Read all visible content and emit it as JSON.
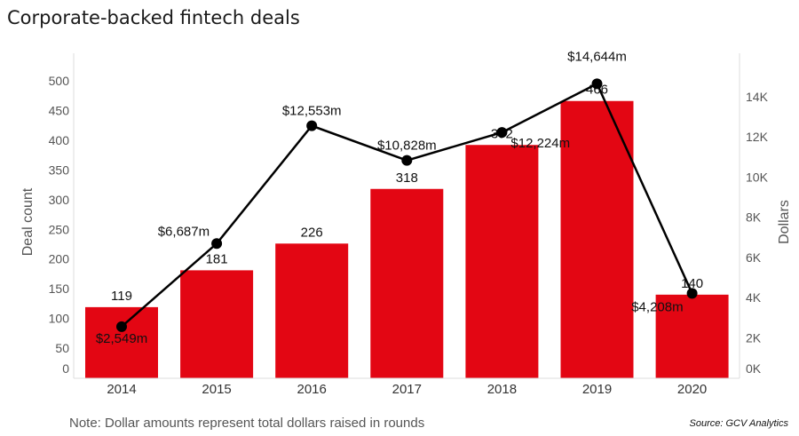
{
  "chart_data": {
    "type": "bar",
    "title": "Corporate-backed fintech deals",
    "categories": [
      "2014",
      "2015",
      "2016",
      "2017",
      "2018",
      "2019",
      "2020"
    ],
    "series": [
      {
        "name": "Deal count",
        "type": "bar",
        "axis": "left",
        "values": [
          119,
          181,
          226,
          318,
          392,
          466,
          140
        ],
        "labels": [
          "119",
          "181",
          "226",
          "318",
          "392",
          "466",
          "140"
        ],
        "color": "#e30613"
      },
      {
        "name": "Dollars",
        "type": "line",
        "axis": "right",
        "values": [
          2549,
          6687,
          12553,
          10828,
          12224,
          14644,
          4208
        ],
        "labels": [
          "$2,549m",
          "$6,687m",
          "$12,553m",
          "$10,828m",
          "$12,224m",
          "$14,644m",
          "$4,208m"
        ],
        "color": "#000000"
      }
    ],
    "ylabel": "Deal count",
    "ylim": [
      0,
      500
    ],
    "yticks": [
      0,
      50,
      100,
      150,
      200,
      250,
      300,
      350,
      400,
      450,
      500
    ],
    "y2label": "Dollars",
    "y2lim": [
      0,
      15000
    ],
    "y2ticks": [
      0,
      2000,
      4000,
      6000,
      8000,
      10000,
      12000,
      14000
    ],
    "y2ticklabels": [
      "0K",
      "2K",
      "4K",
      "6K",
      "8K",
      "10K",
      "12K",
      "14K"
    ],
    "grid": false,
    "note": "Note: Dollar amounts represent total dollars raised in rounds",
    "source": "Source: GCV Analytics"
  }
}
